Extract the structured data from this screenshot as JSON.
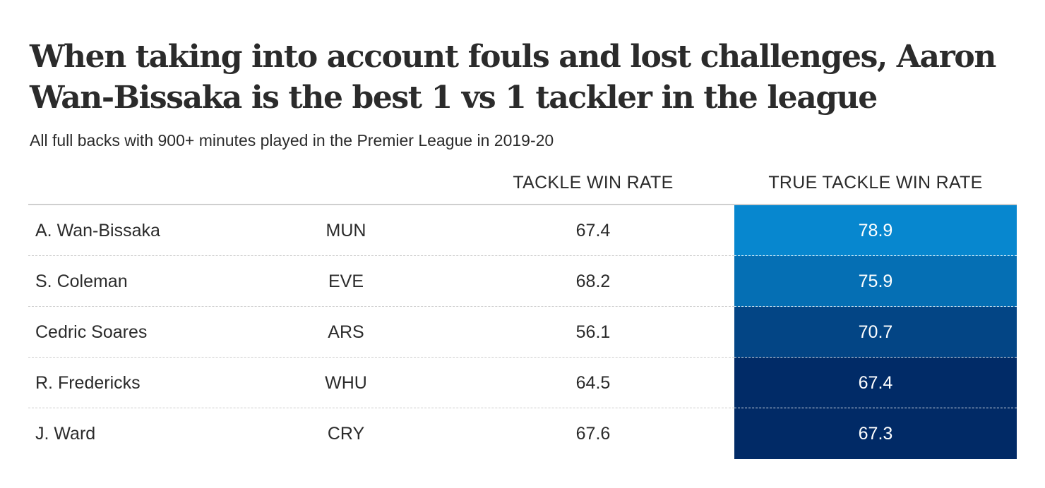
{
  "title": "When taking into account fouls and lost challenges, Aaron Wan-Bissaka is the best 1 vs 1 tackler in the league",
  "subtitle": "All full backs with 900+ minutes played in the Premier League in 2019-20",
  "colors": {
    "text": "#2b2b2b",
    "divider": "#cccccc",
    "scale_low": "#012a66",
    "scale_high": "#0787cf"
  },
  "chart_data": {
    "type": "table",
    "columns": [
      "",
      "",
      "TACKLE WIN RATE",
      "TRUE TACKLE WIN RATE"
    ],
    "rows": [
      {
        "player": "A. Wan-Bissaka",
        "team": "MUN",
        "tackle_win_rate": 67.4,
        "true_tackle_win_rate": 78.9
      },
      {
        "player": "S. Coleman",
        "team": "EVE",
        "tackle_win_rate": 68.2,
        "true_tackle_win_rate": 75.9
      },
      {
        "player": "Cedric Soares",
        "team": "ARS",
        "tackle_win_rate": 56.1,
        "true_tackle_win_rate": 70.7
      },
      {
        "player": "R. Fredericks",
        "team": "WHU",
        "tackle_win_rate": 64.5,
        "true_tackle_win_rate": 67.4
      },
      {
        "player": "J. Ward",
        "team": "CRY",
        "tackle_win_rate": 67.6,
        "true_tackle_win_rate": 67.3
      }
    ],
    "heatmap_column": "true_tackle_win_rate"
  }
}
